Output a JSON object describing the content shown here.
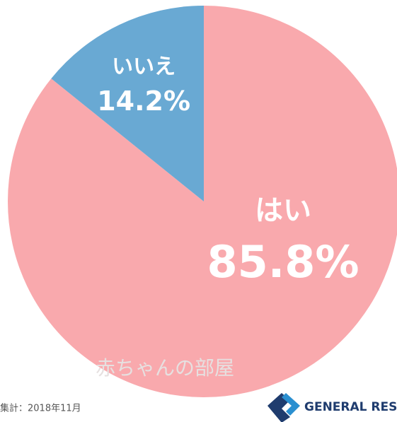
{
  "chart_data": {
    "type": "pie",
    "categories": [
      "はい",
      "いいえ"
    ],
    "values": [
      85.8,
      14.2
    ],
    "value_labels": [
      "85.8%",
      "14.2%"
    ],
    "colors": [
      "#f9a9ad",
      "#69a9d3"
    ],
    "watermark": "赤ちゃんの部屋",
    "note": "集計：2018年11月",
    "logo": "GENERAL RESEARCH"
  }
}
